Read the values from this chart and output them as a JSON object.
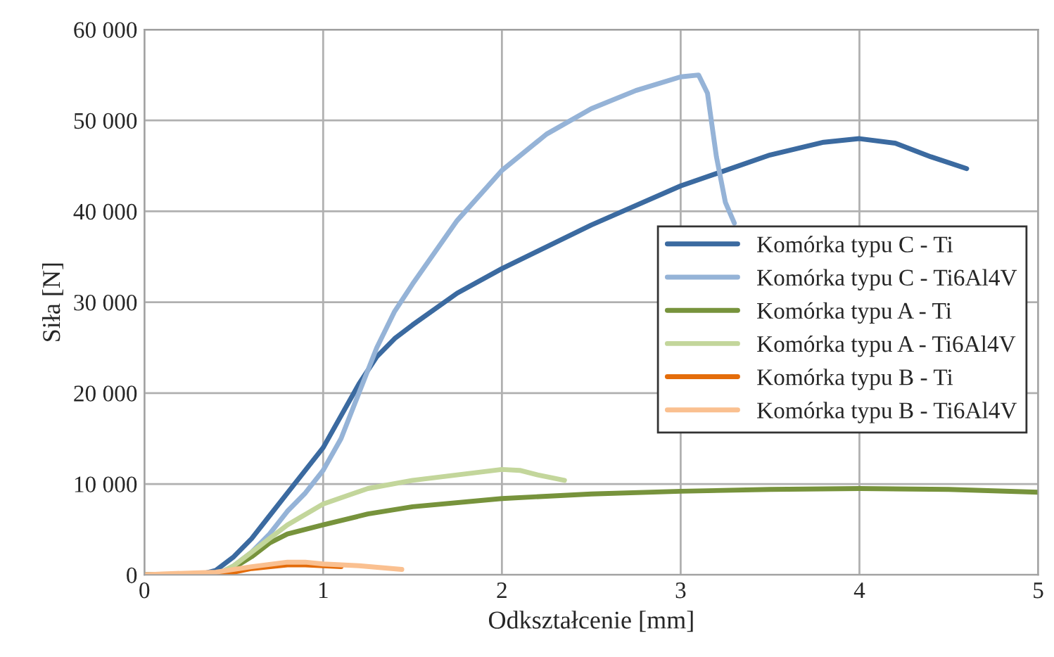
{
  "chart_data": {
    "type": "line",
    "xlabel": "Odkształcenie [mm]",
    "ylabel": "Siła [N]",
    "xlim": [
      0,
      5
    ],
    "xticks": [
      0,
      1,
      2,
      3,
      4,
      5
    ],
    "ylim": [
      0,
      60000
    ],
    "yticks": [
      {
        "value": 0,
        "label": "0"
      },
      {
        "value": 10000,
        "label": "10 000"
      },
      {
        "value": 20000,
        "label": "20 000"
      },
      {
        "value": 30000,
        "label": "30 000"
      },
      {
        "value": 40000,
        "label": "40 000"
      },
      {
        "value": 50000,
        "label": "50 000"
      },
      {
        "value": 60000,
        "label": "60 000"
      }
    ],
    "grid": true,
    "legend": "right",
    "marker": "none",
    "line_style": "solid",
    "series": [
      {
        "name": "Komórka typu C - Ti",
        "color": "#3b6aa0",
        "x": [
          0,
          0.3,
          0.4,
          0.5,
          0.6,
          0.7,
          0.8,
          0.9,
          1,
          1.1,
          1.2,
          1.3,
          1.4,
          1.5,
          1.75,
          2,
          2.5,
          3,
          3.5,
          3.8,
          4,
          4.2,
          4.4,
          4.6
        ],
        "values": [
          0,
          0,
          500,
          2000,
          4000,
          6500,
          9000,
          11500,
          14000,
          17500,
          21000,
          24000,
          26000,
          27500,
          31000,
          33700,
          38500,
          42800,
          46200,
          47600,
          48000,
          47500,
          46000,
          44700
        ]
      },
      {
        "name": "Komórka typu C - Ti6Al4V",
        "color": "#95b3d7",
        "x": [
          0,
          0.4,
          0.5,
          0.6,
          0.7,
          0.8,
          0.9,
          1,
          1.1,
          1.2,
          1.3,
          1.4,
          1.5,
          1.75,
          2,
          2.25,
          2.5,
          2.75,
          3,
          3.1,
          3.15,
          3.2,
          3.25,
          3.3
        ],
        "values": [
          0,
          0,
          1000,
          2500,
          4500,
          7000,
          9000,
          11500,
          15000,
          20000,
          25000,
          29000,
          32000,
          39000,
          44500,
          48500,
          51300,
          53300,
          54800,
          55000,
          53000,
          46000,
          41000,
          38700
        ]
      },
      {
        "name": "Komórka typu A - Ti",
        "color": "#77933c",
        "x": [
          0,
          0.4,
          0.5,
          0.6,
          0.7,
          0.8,
          1,
          1.25,
          1.5,
          2,
          2.5,
          3,
          3.5,
          4,
          4.5,
          5
        ],
        "values": [
          0,
          0,
          800,
          2000,
          3500,
          4500,
          5500,
          6700,
          7500,
          8400,
          8900,
          9200,
          9400,
          9500,
          9400,
          9100
        ]
      },
      {
        "name": "Komórka typu A - Ti6Al4V",
        "color": "#c3d69b",
        "x": [
          0,
          0.4,
          0.5,
          0.6,
          0.7,
          0.8,
          1,
          1.25,
          1.5,
          1.75,
          2,
          2.1,
          2.2,
          2.35
        ],
        "values": [
          0,
          0,
          1000,
          2500,
          4000,
          5500,
          7800,
          9500,
          10400,
          11000,
          11600,
          11500,
          11000,
          10400
        ]
      },
      {
        "name": "Komórka typu B - Ti",
        "color": "#e46c0a",
        "x": [
          0,
          0.4,
          0.5,
          0.6,
          0.8,
          0.9,
          1,
          1.1
        ],
        "values": [
          0,
          0,
          300,
          700,
          1100,
          1100,
          1000,
          900
        ]
      },
      {
        "name": "Komórka typu B - Ti6Al4V",
        "color": "#fac090",
        "x": [
          0,
          0.1,
          0.4,
          0.6,
          0.8,
          0.9,
          1,
          1.2,
          1.44
        ],
        "values": [
          0,
          100,
          300,
          900,
          1400,
          1400,
          1200,
          1000,
          600
        ]
      }
    ]
  }
}
